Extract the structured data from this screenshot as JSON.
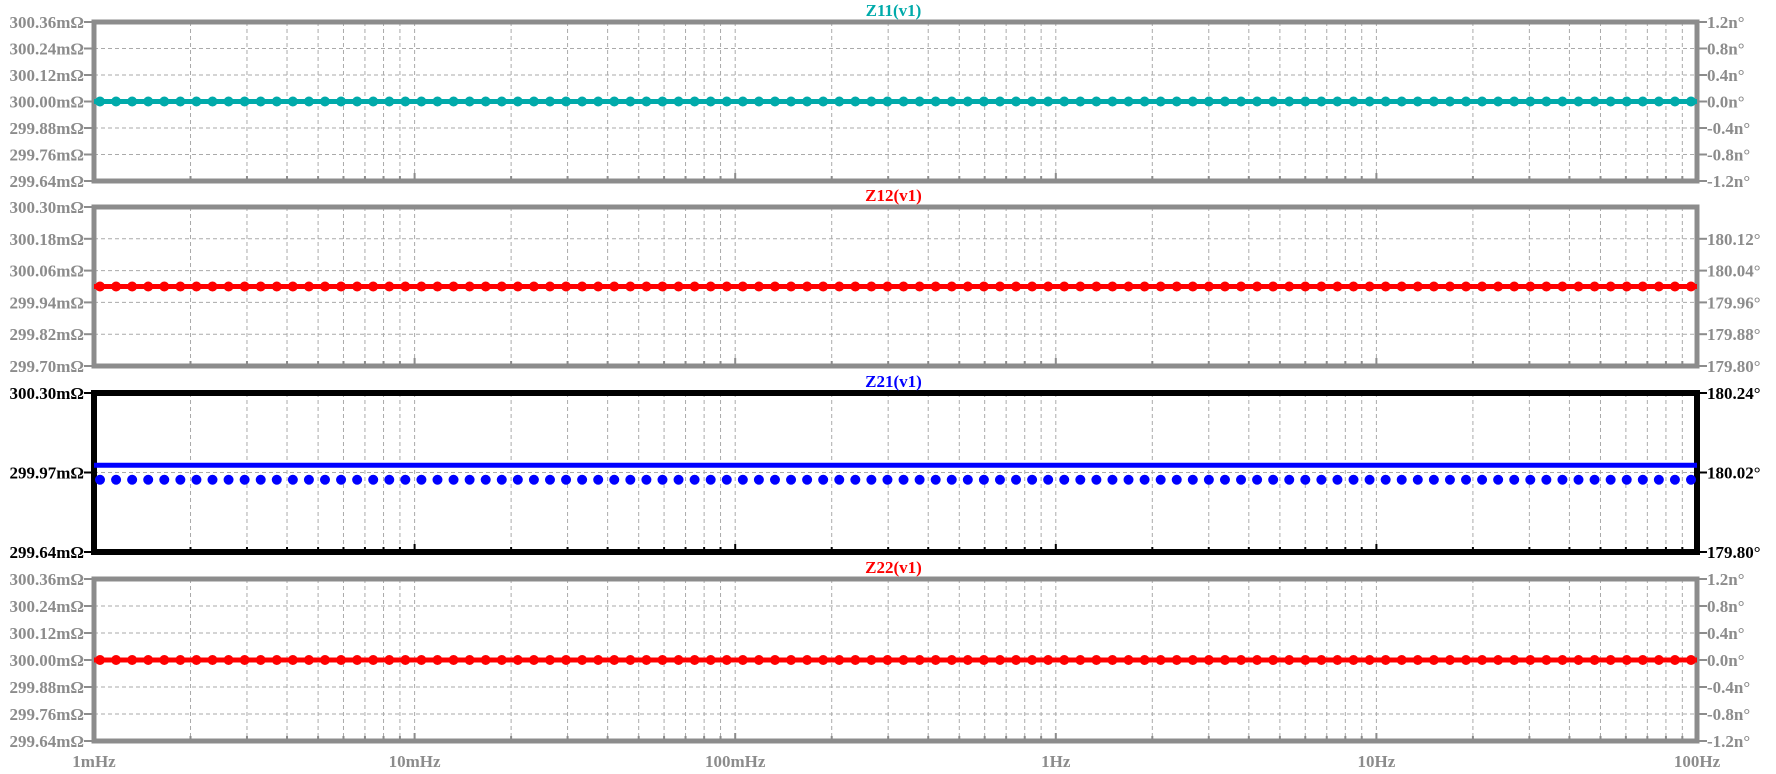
{
  "x_axis": {
    "scale": "log",
    "range": [
      0.001,
      100
    ],
    "tick_labels": [
      "1mHz",
      "10mHz",
      "100mHz",
      "1Hz",
      "10Hz",
      "100Hz"
    ]
  },
  "chart_data": [
    {
      "type": "line",
      "title": "Z11(v1)",
      "title_color": "#00aaaa",
      "trace_color": "#00aaaa",
      "active": false,
      "left_axis": {
        "range": [
          299.64,
          300.36
        ],
        "tick_labels": [
          "300.36mΩ",
          "300.24mΩ",
          "300.12mΩ",
          "300.00mΩ",
          "299.88mΩ",
          "299.76mΩ",
          "299.64mΩ"
        ]
      },
      "right_axis": {
        "range": [
          -1.2,
          1.2
        ],
        "tick_labels": [
          "1.2n°",
          "0.8n°",
          "0.4n°",
          "0.0n°",
          "-0.4n°",
          "-0.8n°",
          "-1.2n°"
        ]
      },
      "magnitude_mohm": 300.0,
      "phase": 0.0
    },
    {
      "type": "line",
      "title": "Z12(v1)",
      "title_color": "#ff0000",
      "trace_color": "#ff0000",
      "active": false,
      "left_axis": {
        "range": [
          299.7,
          300.3
        ],
        "tick_labels": [
          "300.30mΩ",
          "300.18mΩ",
          "300.06mΩ",
          "299.94mΩ",
          "299.82mΩ",
          "299.70mΩ"
        ]
      },
      "right_axis": {
        "range": [
          179.8,
          180.2
        ],
        "tick_labels": [
          "180.12°",
          "180.04°",
          "179.96°",
          "179.88°",
          "179.80°"
        ]
      },
      "magnitude_mohm": 300.0,
      "phase": 180.0
    },
    {
      "type": "line",
      "title": "Z21(v1)",
      "title_color": "#0000ff",
      "trace_color": "#0000ff",
      "active": true,
      "left_axis": {
        "range": [
          299.64,
          300.3
        ],
        "tick_labels": [
          "300.30mΩ",
          "299.97mΩ",
          "299.64mΩ"
        ]
      },
      "right_axis": {
        "range": [
          179.8,
          180.24
        ],
        "tick_labels": [
          "180.24°",
          "180.02°",
          "179.80°"
        ]
      },
      "magnitude_mohm": 300.0,
      "phase": 180.0
    },
    {
      "type": "line",
      "title": "Z22(v1)",
      "title_color": "#ff0000",
      "trace_color": "#ff0000",
      "active": false,
      "left_axis": {
        "range": [
          299.64,
          300.36
        ],
        "tick_labels": [
          "300.36mΩ",
          "300.24mΩ",
          "300.12mΩ",
          "300.00mΩ",
          "299.88mΩ",
          "299.76mΩ",
          "299.64mΩ"
        ]
      },
      "right_axis": {
        "range": [
          -1.2,
          1.2
        ],
        "tick_labels": [
          "1.2n°",
          "0.8n°",
          "0.4n°",
          "0.0n°",
          "-0.4n°",
          "-0.8n°",
          "-1.2n°"
        ]
      },
      "magnitude_mohm": 300.0,
      "phase": 0.0
    }
  ]
}
